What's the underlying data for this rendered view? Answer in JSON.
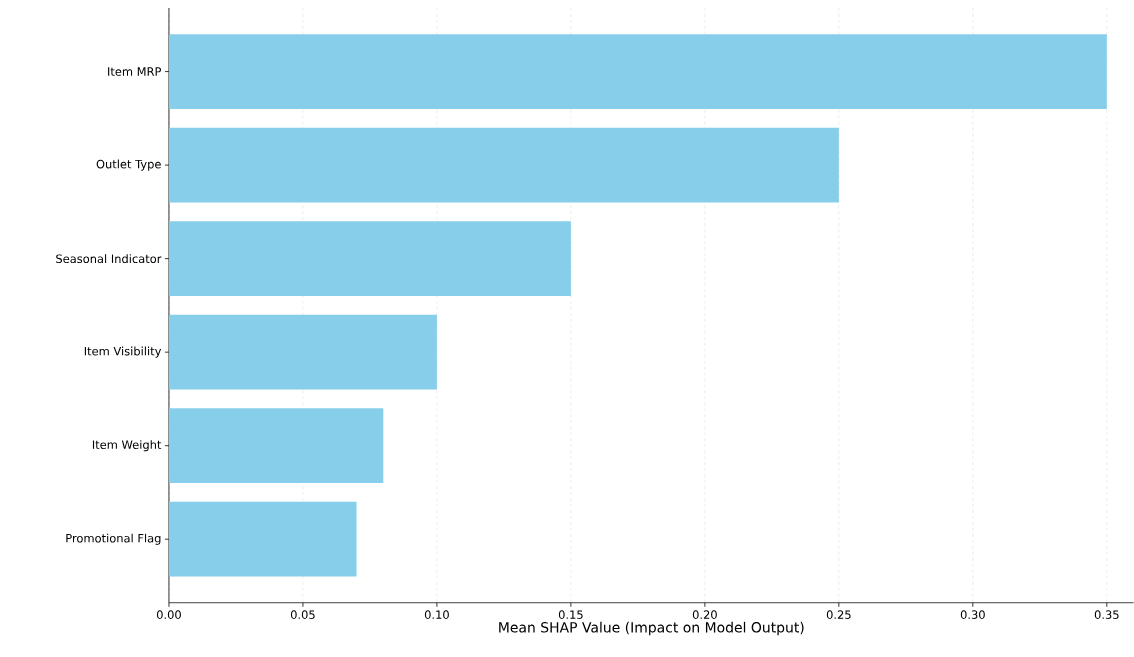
{
  "chart_data": {
    "type": "bar",
    "orientation": "horizontal",
    "xlabel": "Mean SHAP Value (Impact on Model Output)",
    "categories": [
      "Item MRP",
      "Outlet Type",
      "Seasonal Indicator",
      "Item Visibility",
      "Item Weight",
      "Promotional Flag"
    ],
    "values": [
      0.35,
      0.25,
      0.15,
      0.1,
      0.08,
      0.07
    ],
    "color": "#87ceeb",
    "xlim": [
      0,
      0.36
    ],
    "xticks": [
      {
        "value": 0,
        "label": "0.00"
      },
      {
        "value": 0.05,
        "label": "0.05"
      },
      {
        "value": 0.1,
        "label": "0.10"
      },
      {
        "value": 0.15,
        "label": "0.15"
      },
      {
        "value": 0.2,
        "label": "0.20"
      },
      {
        "value": 0.25,
        "label": "0.25"
      },
      {
        "value": 0.3,
        "label": "0.30"
      },
      {
        "value": 0.35,
        "label": "0.35"
      }
    ],
    "grid": "x"
  }
}
